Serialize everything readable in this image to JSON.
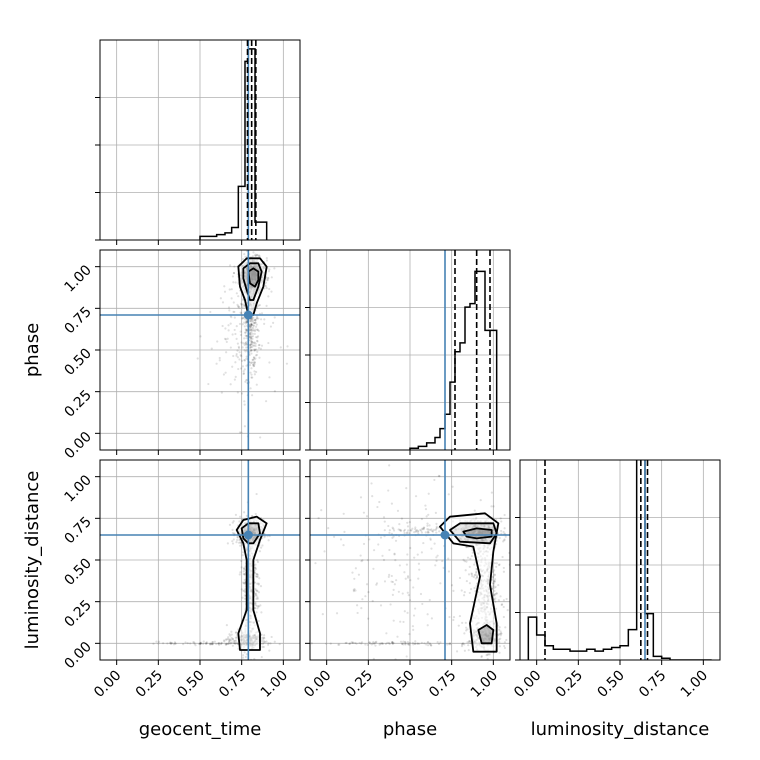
{
  "chart_data": {
    "type": "corner",
    "parameters": [
      "geocent_time",
      "phase",
      "luminosity_distance"
    ],
    "axis_labels": {
      "x": [
        "geocent_time",
        "phase",
        "luminosity_distance"
      ],
      "y": [
        "",
        "phase",
        "luminosity_distance"
      ]
    },
    "ticks": [
      0.0,
      0.25,
      0.5,
      0.75,
      1.0
    ],
    "tick_labels": [
      "0.00",
      "0.25",
      "0.50",
      "0.75",
      "1.00"
    ],
    "xlim": [
      -0.1,
      1.1
    ],
    "ylim": [
      -0.1,
      1.1
    ],
    "grid": true,
    "truths": {
      "geocent_time": 0.79,
      "phase": 0.71,
      "luminosity_distance": 0.65
    },
    "truth_color": "#4682b4",
    "line_color": "#000000",
    "histograms": {
      "geocent_time": {
        "bin_edges": [
          0.5,
          0.55,
          0.6,
          0.65,
          0.69,
          0.73,
          0.77,
          0.79,
          0.81,
          0.83,
          0.85,
          0.9
        ],
        "counts": [
          0.02,
          0.02,
          0.03,
          0.04,
          0.07,
          0.3,
          1.0,
          1.07,
          1.07,
          0.1,
          0.1
        ],
        "quantiles": [
          0.785,
          0.81,
          0.835
        ],
        "ylim": [
          0,
          1.12
        ]
      },
      "phase": {
        "bin_edges": [
          0.5,
          0.55,
          0.6,
          0.65,
          0.68,
          0.71,
          0.74,
          0.77,
          0.8,
          0.83,
          0.86,
          0.89,
          0.92,
          0.95,
          0.98,
          1.02
        ],
        "counts": [
          0.01,
          0.02,
          0.04,
          0.07,
          0.12,
          0.2,
          0.38,
          0.55,
          0.6,
          0.8,
          0.82,
          1.0,
          1.0,
          0.67,
          0.67
        ],
        "quantiles": [
          0.77,
          0.9,
          0.98
        ],
        "ylim": [
          0,
          1.12
        ]
      },
      "luminosity_distance": {
        "bin_edges": [
          -0.05,
          0.0,
          0.05,
          0.1,
          0.15,
          0.2,
          0.25,
          0.3,
          0.35,
          0.4,
          0.45,
          0.5,
          0.55,
          0.6,
          0.625,
          0.65,
          0.7,
          0.75,
          0.8,
          1.05
        ],
        "counts": [
          0.24,
          0.14,
          0.08,
          0.06,
          0.06,
          0.05,
          0.05,
          0.06,
          0.05,
          0.06,
          0.07,
          0.08,
          0.17,
          1.15,
          1.15,
          0.26,
          0.02,
          0.01,
          0.0
        ],
        "quantiles": [
          0.05,
          0.625,
          0.665
        ],
        "ylim": [
          0,
          1.12
        ]
      }
    },
    "scatter_panels": [
      {
        "x": "geocent_time",
        "y": "phase",
        "cloud": [
          {
            "cx": 0.82,
            "cy": 0.95,
            "sx": 0.04,
            "sy": 0.05,
            "n": 700
          },
          {
            "cx": 0.8,
            "cy": 0.7,
            "sx": 0.025,
            "sy": 0.18,
            "n": 450
          },
          {
            "cx": 0.75,
            "cy": 0.6,
            "sx": 0.1,
            "sy": 0.25,
            "n": 130
          }
        ],
        "contours": [
          [
            [
              0.73,
              1.0
            ],
            [
              0.78,
              1.05
            ],
            [
              0.86,
              1.05
            ],
            [
              0.9,
              1.0
            ],
            [
              0.88,
              0.88
            ],
            [
              0.84,
              0.78
            ],
            [
              0.82,
              0.71
            ],
            [
              0.79,
              0.71
            ],
            [
              0.77,
              0.8
            ],
            [
              0.74,
              0.88
            ]
          ],
          [
            [
              0.76,
              0.99
            ],
            [
              0.8,
              1.02
            ],
            [
              0.85,
              1.02
            ],
            [
              0.87,
              0.97
            ],
            [
              0.85,
              0.88
            ],
            [
              0.82,
              0.8
            ],
            [
              0.8,
              0.8
            ],
            [
              0.78,
              0.86
            ],
            [
              0.76,
              0.93
            ]
          ],
          [
            [
              0.79,
              0.97
            ],
            [
              0.82,
              0.99
            ],
            [
              0.85,
              0.97
            ],
            [
              0.85,
              0.92
            ],
            [
              0.83,
              0.88
            ],
            [
              0.8,
              0.9
            ]
          ]
        ],
        "dense_core": {
          "x": 0.82,
          "y": 0.95,
          "rx": 0.02,
          "ry": 0.03
        }
      },
      {
        "x": "geocent_time",
        "y": "luminosity_distance",
        "cloud": [
          {
            "cx": 0.8,
            "cy": 0.66,
            "sx": 0.04,
            "sy": 0.04,
            "n": 450
          },
          {
            "cx": 0.8,
            "cy": 0.35,
            "sx": 0.025,
            "sy": 0.2,
            "n": 380
          },
          {
            "cx": 0.78,
            "cy": 0.02,
            "sx": 0.06,
            "sy": 0.025,
            "n": 220
          },
          {
            "cx": 0.55,
            "cy": 0.0,
            "sx": 0.15,
            "sy": 0.005,
            "n": 80
          }
        ],
        "contours": [
          [
            [
              0.72,
              0.68
            ],
            [
              0.76,
              0.74
            ],
            [
              0.84,
              0.76
            ],
            [
              0.9,
              0.72
            ],
            [
              0.86,
              0.62
            ],
            [
              0.82,
              0.5
            ],
            [
              0.82,
              0.2
            ],
            [
              0.86,
              0.06
            ],
            [
              0.86,
              -0.04
            ],
            [
              0.74,
              -0.04
            ],
            [
              0.73,
              0.06
            ],
            [
              0.78,
              0.2
            ],
            [
              0.78,
              0.5
            ],
            [
              0.76,
              0.6
            ]
          ],
          [
            [
              0.75,
              0.69
            ],
            [
              0.79,
              0.72
            ],
            [
              0.85,
              0.72
            ],
            [
              0.86,
              0.66
            ],
            [
              0.82,
              0.6
            ],
            [
              0.79,
              0.6
            ],
            [
              0.76,
              0.63
            ]
          ]
        ],
        "dense_core": {
          "x": 0.8,
          "y": 0.66,
          "rx": 0.02,
          "ry": 0.02
        }
      },
      {
        "x": "phase",
        "y": "luminosity_distance",
        "cloud": [
          {
            "cx": 0.92,
            "cy": 0.66,
            "sx": 0.06,
            "sy": 0.035,
            "n": 500
          },
          {
            "cx": 0.95,
            "cy": 0.35,
            "sx": 0.05,
            "sy": 0.2,
            "n": 400
          },
          {
            "cx": 0.95,
            "cy": 0.03,
            "sx": 0.05,
            "sy": 0.04,
            "n": 220
          },
          {
            "cx": 0.5,
            "cy": 0.45,
            "sx": 0.25,
            "sy": 0.25,
            "n": 200
          },
          {
            "cx": 0.45,
            "cy": 0.0,
            "sx": 0.25,
            "sy": 0.005,
            "n": 90
          },
          {
            "cx": 0.6,
            "cy": 0.68,
            "sx": 0.12,
            "sy": 0.02,
            "n": 80
          }
        ],
        "contours": [
          [
            [
              0.68,
              0.7
            ],
            [
              0.74,
              0.76
            ],
            [
              0.95,
              0.78
            ],
            [
              1.03,
              0.72
            ],
            [
              1.0,
              0.55
            ],
            [
              0.98,
              0.35
            ],
            [
              1.02,
              0.12
            ],
            [
              1.02,
              -0.05
            ],
            [
              0.88,
              -0.05
            ],
            [
              0.86,
              0.12
            ],
            [
              0.92,
              0.4
            ],
            [
              0.88,
              0.58
            ],
            [
              0.76,
              0.6
            ]
          ],
          [
            [
              0.74,
              0.68
            ],
            [
              0.8,
              0.72
            ],
            [
              1.0,
              0.72
            ],
            [
              1.02,
              0.66
            ],
            [
              0.98,
              0.6
            ],
            [
              0.8,
              0.61
            ]
          ],
          [
            [
              0.82,
              0.67
            ],
            [
              0.9,
              0.69
            ],
            [
              0.99,
              0.68
            ],
            [
              0.99,
              0.64
            ],
            [
              0.9,
              0.63
            ],
            [
              0.84,
              0.64
            ]
          ],
          [
            [
              0.91,
              0.08
            ],
            [
              0.96,
              0.11
            ],
            [
              1.0,
              0.08
            ],
            [
              0.99,
              0.0
            ],
            [
              0.93,
              0.0
            ]
          ]
        ],
        "dense_core": {
          "x": 0.95,
          "y": 0.66,
          "rx": 0.04,
          "ry": 0.015
        }
      }
    ]
  }
}
